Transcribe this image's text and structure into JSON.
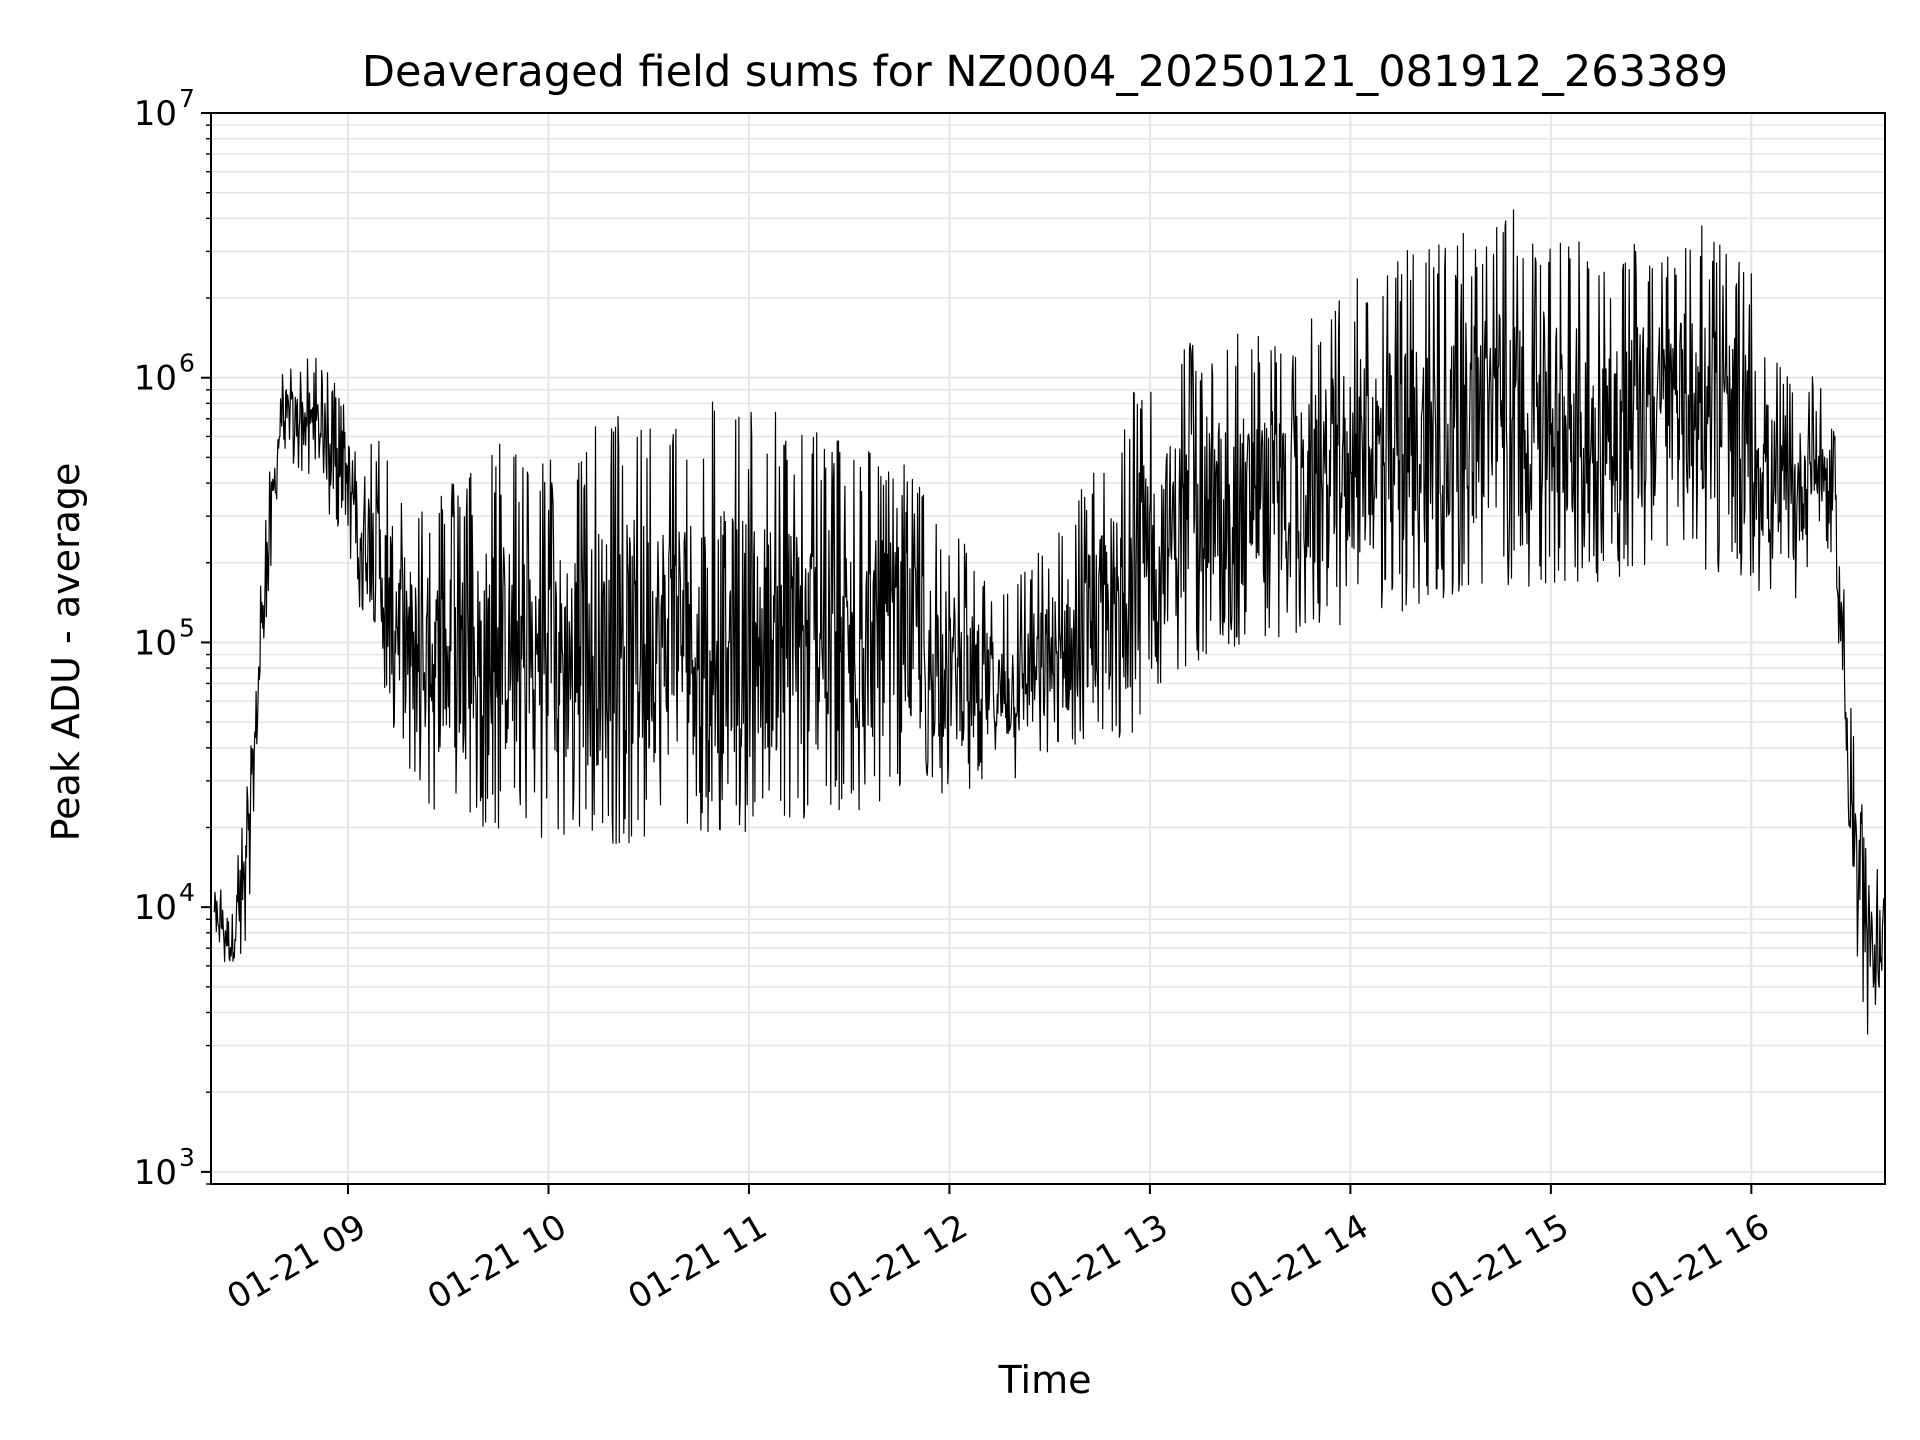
{
  "chart_data": {
    "type": "line",
    "title": "Deaveraged field sums for NZ0004_20250121_081912_263389",
    "xlabel": "Time",
    "ylabel": "Peak ADU - average",
    "y_scale": "log",
    "ylim": [
      900,
      10000000
    ],
    "xlim": [
      "2025-01-21 08:19",
      "2025-01-21 16:40"
    ],
    "grid": true,
    "grid_color": "#e6e6e6",
    "line_color": "#000000",
    "x_ticks": [
      "01-21 09",
      "01-21 10",
      "01-21 11",
      "01-21 12",
      "01-21 13",
      "01-21 14",
      "01-21 15",
      "01-21 16"
    ],
    "y_ticks": [
      {
        "base": "10",
        "exp": "3",
        "value": 1000
      },
      {
        "base": "10",
        "exp": "4",
        "value": 10000
      },
      {
        "base": "10",
        "exp": "5",
        "value": 100000
      },
      {
        "base": "10",
        "exp": "6",
        "value": 1000000
      },
      {
        "base": "10",
        "exp": "7",
        "value": 10000000
      }
    ],
    "series": [
      {
        "x": [
          "2025-01-21 08:20",
          "2025-01-21 08:25",
          "2025-01-21 08:30",
          "2025-01-21 08:35",
          "2025-01-21 08:40",
          "2025-01-21 08:50",
          "2025-01-21 09:00",
          "2025-01-21 09:10",
          "2025-01-21 09:20",
          "2025-01-21 09:30",
          "2025-01-21 09:45",
          "2025-01-21 10:00",
          "2025-01-21 10:15",
          "2025-01-21 10:30",
          "2025-01-21 10:45",
          "2025-01-21 11:00",
          "2025-01-21 11:15",
          "2025-01-21 11:30",
          "2025-01-21 11:45",
          "2025-01-21 12:00",
          "2025-01-21 12:15",
          "2025-01-21 12:30",
          "2025-01-21 12:45",
          "2025-01-21 12:55",
          "2025-01-21 13:00",
          "2025-01-21 13:15",
          "2025-01-21 13:30",
          "2025-01-21 13:45",
          "2025-01-21 14:00",
          "2025-01-21 14:15",
          "2025-01-21 14:30",
          "2025-01-21 14:45",
          "2025-01-21 15:00",
          "2025-01-21 15:15",
          "2025-01-21 15:30",
          "2025-01-21 15:45",
          "2025-01-21 16:00",
          "2025-01-21 16:10",
          "2025-01-21 16:20",
          "2025-01-21 16:25",
          "2025-01-21 16:30",
          "2025-01-21 16:35",
          "2025-01-21 16:40"
        ],
        "upper": [
          13000,
          11000,
          30000,
          300000,
          1100000,
          1200000,
          900000,
          600000,
          350000,
          400000,
          600000,
          500000,
          700000,
          800000,
          900000,
          800000,
          700000,
          600000,
          500000,
          300000,
          150000,
          250000,
          500000,
          1000000,
          1000000,
          1500000,
          1500000,
          1500000,
          2500000,
          3000000,
          3500000,
          4500000,
          4000000,
          3000000,
          3500000,
          4000000,
          2500000,
          1000000,
          1100000,
          600000,
          60000,
          14000,
          14000
        ],
        "lower": [
          8000,
          5000,
          7000,
          100000,
          500000,
          400000,
          200000,
          60000,
          25000,
          20000,
          18000,
          17000,
          16000,
          16000,
          17000,
          17000,
          18000,
          20000,
          25000,
          25000,
          28000,
          32000,
          35000,
          35000,
          60000,
          80000,
          90000,
          100000,
          110000,
          120000,
          130000,
          150000,
          150000,
          160000,
          170000,
          180000,
          150000,
          100000,
          250000,
          200000,
          8000,
          3000,
          6000
        ]
      }
    ]
  }
}
